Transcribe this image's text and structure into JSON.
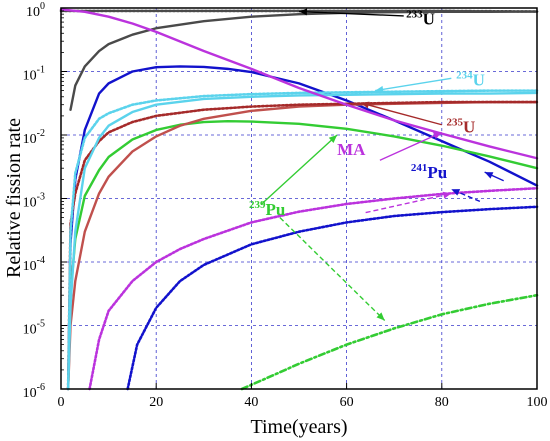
{
  "chart_data": {
    "type": "line",
    "xlabel": "Time(years)",
    "ylabel": "Relative fission rate",
    "xlim": [
      0,
      100
    ],
    "ylim": [
      1e-06,
      1
    ],
    "yscale": "log",
    "grid": true,
    "x_ticks": [
      "0",
      "20",
      "40",
      "60",
      "80",
      "100"
    ],
    "y_tick_mantissa": [
      "10",
      "10",
      "10",
      "10",
      "10",
      "10",
      "10"
    ],
    "y_tick_exponents": [
      "0",
      "-1",
      "-2",
      "-3",
      "-4",
      "-5",
      "-6"
    ],
    "series": [
      {
        "color": "#4a4a4a",
        "dash": "solid",
        "x": [
          2,
          3,
          5,
          8,
          10,
          15,
          20,
          30,
          40,
          50,
          60,
          70,
          80,
          90,
          100
        ],
        "y": [
          0.025,
          0.06,
          0.12,
          0.21,
          0.27,
          0.38,
          0.48,
          0.62,
          0.73,
          0.8,
          0.84,
          0.86,
          0.87,
          0.87,
          0.88
        ]
      },
      {
        "color": "#4a4a4a",
        "dash": "dotted",
        "x": [
          0,
          20,
          40,
          60,
          80,
          100
        ],
        "y": [
          0.9,
          0.9,
          0.9,
          0.9,
          0.9,
          0.88
        ]
      },
      {
        "color": "#1212cc",
        "dash": "solid",
        "x": [
          1.5,
          2,
          3,
          5,
          8,
          10,
          15,
          20,
          25,
          30,
          35,
          40,
          50,
          60,
          70,
          80,
          90,
          100
        ],
        "y": [
          1e-06,
          0.0002,
          0.002,
          0.012,
          0.045,
          0.065,
          0.1,
          0.117,
          0.12,
          0.118,
          0.11,
          0.098,
          0.065,
          0.035,
          0.017,
          0.008,
          0.0038,
          0.0016
        ]
      },
      {
        "color": "#1212cc",
        "dash": "dotted",
        "x": [
          14,
          16,
          20,
          25,
          30,
          40,
          50,
          60,
          70,
          80,
          90,
          100
        ],
        "y": [
          1e-06,
          5e-06,
          1.9e-05,
          5e-05,
          9e-05,
          0.00019,
          0.0003,
          0.00042,
          0.00053,
          0.00061,
          0.00068,
          0.00074
        ]
      },
      {
        "color": "#33cc33",
        "dash": "solid",
        "x": [
          1.5,
          2,
          3,
          5,
          8,
          10,
          15,
          20,
          25,
          30,
          35,
          40,
          50,
          60,
          70,
          80,
          90,
          100
        ],
        "y": [
          1e-06,
          3e-05,
          0.00023,
          0.0011,
          0.0028,
          0.0045,
          0.0085,
          0.012,
          0.0145,
          0.016,
          0.0165,
          0.0163,
          0.015,
          0.0125,
          0.0095,
          0.0068,
          0.0046,
          0.003
        ]
      },
      {
        "color": "#33cc33",
        "dash": "dashdot",
        "x": [
          38,
          45,
          50,
          60,
          70,
          80,
          90,
          100
        ],
        "y": [
          1e-06,
          1.7e-06,
          2.5e-06,
          5e-06,
          9e-06,
          1.5e-05,
          2.2e-05,
          3e-05
        ]
      },
      {
        "color": "#c0504d",
        "dash": "solid",
        "x": [
          1.5,
          2,
          3,
          5,
          8,
          10,
          15,
          20,
          25,
          30,
          40,
          50,
          60,
          70,
          80,
          90,
          100
        ],
        "y": [
          1e-06,
          1e-05,
          5e-05,
          0.0003,
          0.0012,
          0.0022,
          0.0055,
          0.0095,
          0.014,
          0.018,
          0.024,
          0.028,
          0.03,
          0.031,
          0.032,
          0.033,
          0.033
        ]
      },
      {
        "color": "#a52a2a",
        "dash": "dotted",
        "x": [
          1.5,
          2,
          3,
          5,
          8,
          10,
          15,
          20,
          30,
          40,
          50,
          60,
          70,
          80,
          90,
          100
        ],
        "y": [
          1e-06,
          0.0004,
          0.0012,
          0.004,
          0.008,
          0.011,
          0.016,
          0.02,
          0.025,
          0.028,
          0.03,
          0.031,
          0.032,
          0.033,
          0.033,
          0.033
        ]
      },
      {
        "color": "#5bd3ec",
        "dash": "solid",
        "x": [
          1.5,
          2,
          3,
          5,
          8,
          10,
          15,
          20,
          30,
          40,
          50,
          60,
          70,
          80,
          90,
          100
        ],
        "y": [
          1e-06,
          2e-05,
          0.0003,
          0.003,
          0.009,
          0.014,
          0.023,
          0.03,
          0.037,
          0.04,
          0.042,
          0.043,
          0.044,
          0.045,
          0.045,
          0.046
        ]
      },
      {
        "color": "#5bd3ec",
        "dash": "dotted",
        "x": [
          1.5,
          2,
          3,
          5,
          8,
          10,
          15,
          20,
          30,
          40,
          50,
          60,
          70,
          80,
          90,
          100
        ],
        "y": [
          1e-06,
          0.0003,
          0.0025,
          0.009,
          0.018,
          0.022,
          0.03,
          0.035,
          0.041,
          0.044,
          0.046,
          0.047,
          0.048,
          0.049,
          0.05,
          0.05
        ]
      },
      {
        "color": "#bb33dd",
        "dash": "solid",
        "x": [
          0,
          5,
          10,
          15,
          20,
          30,
          40,
          50,
          60,
          70,
          80,
          90,
          100
        ],
        "y": [
          0.95,
          0.87,
          0.73,
          0.57,
          0.42,
          0.21,
          0.11,
          0.055,
          0.03,
          0.017,
          0.0105,
          0.0066,
          0.0043
        ]
      },
      {
        "color": "#bb33dd",
        "dash": "dotted",
        "x": [
          6,
          8,
          10,
          15,
          20,
          25,
          30,
          40,
          50,
          60,
          70,
          80,
          90,
          100
        ],
        "y": [
          1e-06,
          6e-06,
          1.7e-05,
          5e-05,
          0.0001,
          0.00016,
          0.00023,
          0.00042,
          0.00062,
          0.00082,
          0.001,
          0.00118,
          0.00132,
          0.00145
        ]
      }
    ],
    "annotations": [
      {
        "sup": "233",
        "text": "U",
        "color": "#000000"
      },
      {
        "sup": "234",
        "text": "U",
        "color": "#5bd3ec"
      },
      {
        "sup": "235",
        "text": "U",
        "color": "#a52a2a"
      },
      {
        "sup": "",
        "text": "MA",
        "color": "#bb33dd"
      },
      {
        "sup": "241",
        "text": "Pu",
        "color": "#1212cc"
      },
      {
        "sup": "239",
        "text": "Pu",
        "color": "#33cc33"
      }
    ]
  }
}
